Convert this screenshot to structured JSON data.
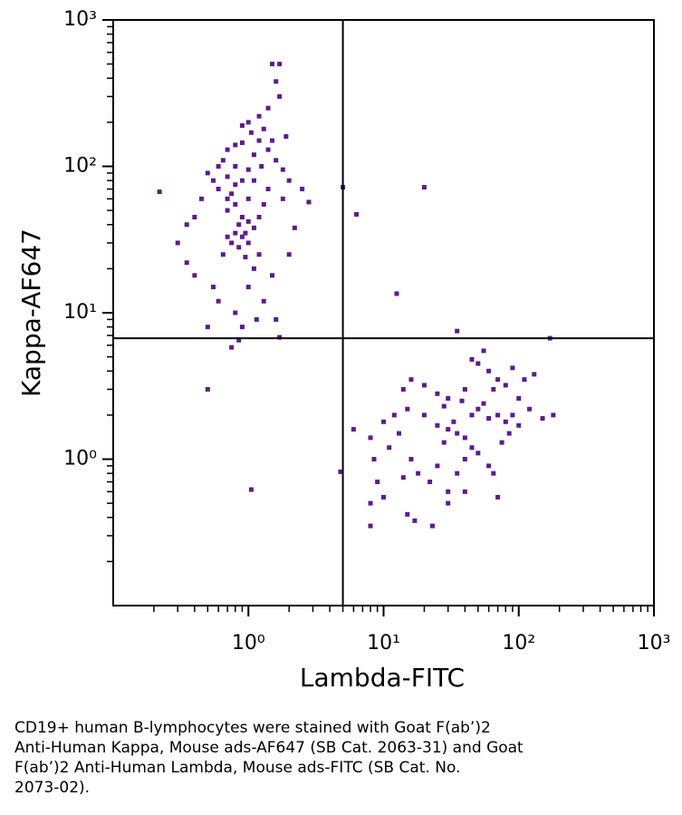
{
  "chart_data": {
    "type": "scatter",
    "x_label": "Lambda-FITC",
    "y_label": "Kappa-AF647",
    "xscale": "log",
    "yscale": "log",
    "color": "#5c1c8c",
    "xlim": [
      0.1,
      1000
    ],
    "ylim": [
      0.1,
      1000
    ],
    "xticks": [
      {
        "value": 1,
        "label": "10⁰"
      },
      {
        "value": 10,
        "label": "10¹"
      },
      {
        "value": 100,
        "label": "10²"
      },
      {
        "value": 1000,
        "label": "10³"
      }
    ],
    "yticks": [
      {
        "value": 1,
        "label": "10⁰"
      },
      {
        "value": 10,
        "label": "10¹"
      },
      {
        "value": 100,
        "label": "10²"
      },
      {
        "value": 1000,
        "label": "10³"
      }
    ],
    "xminorticks": [
      0.2,
      0.3,
      0.4,
      0.5,
      0.6,
      0.7,
      0.8,
      0.9,
      2,
      3,
      4,
      5,
      6,
      7,
      8,
      9,
      20,
      30,
      40,
      50,
      60,
      70,
      80,
      90,
      200,
      300,
      400,
      500,
      600,
      700,
      800,
      900
    ],
    "yminorticks": [
      0.2,
      0.3,
      0.4,
      0.5,
      0.6,
      0.7,
      0.8,
      0.9,
      2,
      3,
      4,
      5,
      6,
      7,
      8,
      9,
      20,
      30,
      40,
      50,
      60,
      70,
      80,
      90,
      200,
      300,
      400,
      500,
      600,
      700,
      800,
      900
    ],
    "gates": {
      "x": 5,
      "y": 6.7
    },
    "x": [
      0.8,
      0.9,
      1.0,
      0.7,
      0.85,
      0.95,
      0.75,
      1.1,
      1.2,
      1.0,
      1.3,
      0.6,
      0.5,
      0.65,
      0.8,
      0.9,
      1.05,
      1.4,
      1.6,
      1.8,
      2.0,
      2.5,
      0.45,
      0.4,
      0.35,
      0.3,
      0.35,
      0.4,
      0.55,
      0.6,
      0.5,
      0.8,
      0.9,
      0.85,
      0.75,
      1.0,
      1.1,
      1.2,
      1.3,
      1.5,
      1.6,
      1.7,
      2.0,
      2.2,
      2.8,
      1.7,
      1.5,
      1.7,
      1.6,
      1.4,
      1.2,
      0.9,
      0.7,
      0.6,
      0.55,
      0.7,
      0.8,
      0.9,
      1.0,
      1.1,
      0.8,
      0.7,
      0.9,
      0.85,
      0.95,
      1.0,
      1.2,
      1.3,
      1.4,
      1.1,
      1.0,
      0.8,
      0.7,
      0.75,
      1.25,
      1.5,
      1.9,
      1.8,
      0.65,
      1.15,
      30,
      35,
      25,
      40,
      28,
      33,
      45,
      50,
      60,
      70,
      80,
      90,
      100,
      120,
      150,
      180,
      20,
      15,
      12,
      10,
      11,
      13,
      16,
      18,
      22,
      25,
      30,
      35,
      40,
      45,
      50,
      60,
      65,
      70,
      40,
      30,
      23,
      17,
      15,
      8,
      8,
      9,
      8.5,
      10,
      14,
      6,
      8,
      14,
      16,
      20,
      25,
      30,
      40,
      50,
      55,
      60,
      70,
      80,
      90,
      110,
      130,
      35,
      45,
      28,
      38,
      55,
      65,
      75,
      85,
      100,
      0.22,
      5,
      6.3,
      20,
      12.5,
      0.5,
      1.05,
      4.8,
      170
    ],
    "values": [
      100,
      80,
      60,
      50,
      40,
      35,
      30,
      120,
      150,
      200,
      180,
      70,
      90,
      110,
      140,
      145,
      170,
      130,
      110,
      95,
      80,
      70,
      60,
      45,
      40,
      30,
      22,
      18,
      15,
      12,
      8,
      10,
      8,
      6.5,
      5.8,
      15,
      20,
      25,
      12,
      18,
      9,
      6.8,
      25,
      38,
      57,
      300,
      500,
      500,
      380,
      250,
      220,
      190,
      130,
      100,
      80,
      60,
      55,
      45,
      42,
      38,
      35,
      33,
      33,
      28,
      24,
      30,
      45,
      55,
      70,
      80,
      95,
      75,
      85,
      65,
      100,
      150,
      160,
      60,
      25,
      9,
      1.6,
      1.5,
      1.7,
      1.4,
      1.3,
      1.8,
      2.0,
      2.2,
      1.9,
      2.0,
      1.8,
      2.0,
      1.7,
      2.2,
      1.9,
      2.0,
      2.0,
      2.2,
      2.0,
      1.8,
      1.2,
      1.5,
      1.0,
      0.8,
      0.7,
      0.9,
      0.6,
      0.8,
      1.0,
      1.2,
      1.1,
      0.9,
      0.8,
      0.55,
      0.6,
      0.5,
      0.35,
      0.38,
      0.42,
      0.35,
      0.5,
      0.7,
      1.0,
      0.55,
      0.75,
      1.6,
      1.4,
      3.0,
      3.5,
      3.2,
      2.8,
      2.6,
      3.0,
      4.5,
      5.5,
      4.0,
      3.5,
      3.2,
      4.2,
      3.5,
      3.8,
      7.5,
      4.8,
      2.3,
      2.5,
      2.4,
      3.0,
      1.3,
      1.5,
      2.6,
      67,
      72,
      47,
      72,
      13.5,
      3,
      0.62,
      0.82,
      6.7
    ]
  },
  "caption": [
    "CD19+ human B-lymphocytes were stained with Goat F(ab’)2",
    "Anti-Human Kappa, Mouse ads-AF647 (SB Cat. 2063-31) and Goat",
    "F(ab’)2 Anti-Human Lambda, Mouse ads-FITC (SB Cat. No.",
    "2073-02)."
  ]
}
